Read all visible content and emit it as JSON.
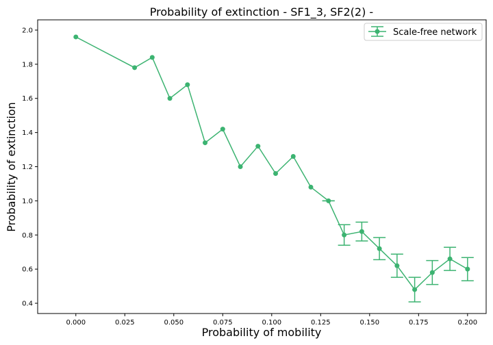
{
  "chart_data": {
    "type": "line",
    "title": "Probability of extinction - SF1_3, SF2(2) -",
    "xlabel": "Probability of mobility",
    "ylabel": "Probability of extinction",
    "xlim": [
      -0.0195,
      0.2095
    ],
    "ylim": [
      0.34,
      2.06
    ],
    "xticks": [
      0.0,
      0.025,
      0.05,
      0.075,
      0.1,
      0.125,
      0.15,
      0.175,
      0.2
    ],
    "xtick_labels": [
      "0.000",
      "0.025",
      "0.050",
      "0.075",
      "0.100",
      "0.125",
      "0.150",
      "0.175",
      "0.200"
    ],
    "yticks": [
      0.4,
      0.6,
      0.8,
      1.0,
      1.2,
      1.4,
      1.6,
      1.8,
      2.0
    ],
    "ytick_labels": [
      "0.4",
      "0.6",
      "0.8",
      "1.0",
      "1.2",
      "1.4",
      "1.6",
      "1.8",
      "2.0"
    ],
    "grid": false,
    "legend_position": "top-right",
    "series": [
      {
        "name": "Scale-free network",
        "color": "#3cb371",
        "x": [
          0.0,
          0.03,
          0.039,
          0.048,
          0.057,
          0.066,
          0.075,
          0.084,
          0.093,
          0.102,
          0.111,
          0.12,
          0.129,
          0.137,
          0.146,
          0.155,
          0.164,
          0.173,
          0.182,
          0.191,
          0.2
        ],
        "y": [
          1.96,
          1.78,
          1.84,
          1.6,
          1.68,
          1.34,
          1.42,
          1.2,
          1.32,
          1.16,
          1.26,
          1.08,
          1.0,
          0.8,
          0.82,
          0.72,
          0.62,
          0.48,
          0.58,
          0.66,
          0.6
        ],
        "yerr": [
          0,
          0,
          0,
          0,
          0,
          0,
          0,
          0,
          0,
          0,
          0,
          0,
          0.0,
          0.06,
          0.055,
          0.065,
          0.068,
          0.072,
          0.07,
          0.068,
          0.068
        ]
      }
    ]
  }
}
